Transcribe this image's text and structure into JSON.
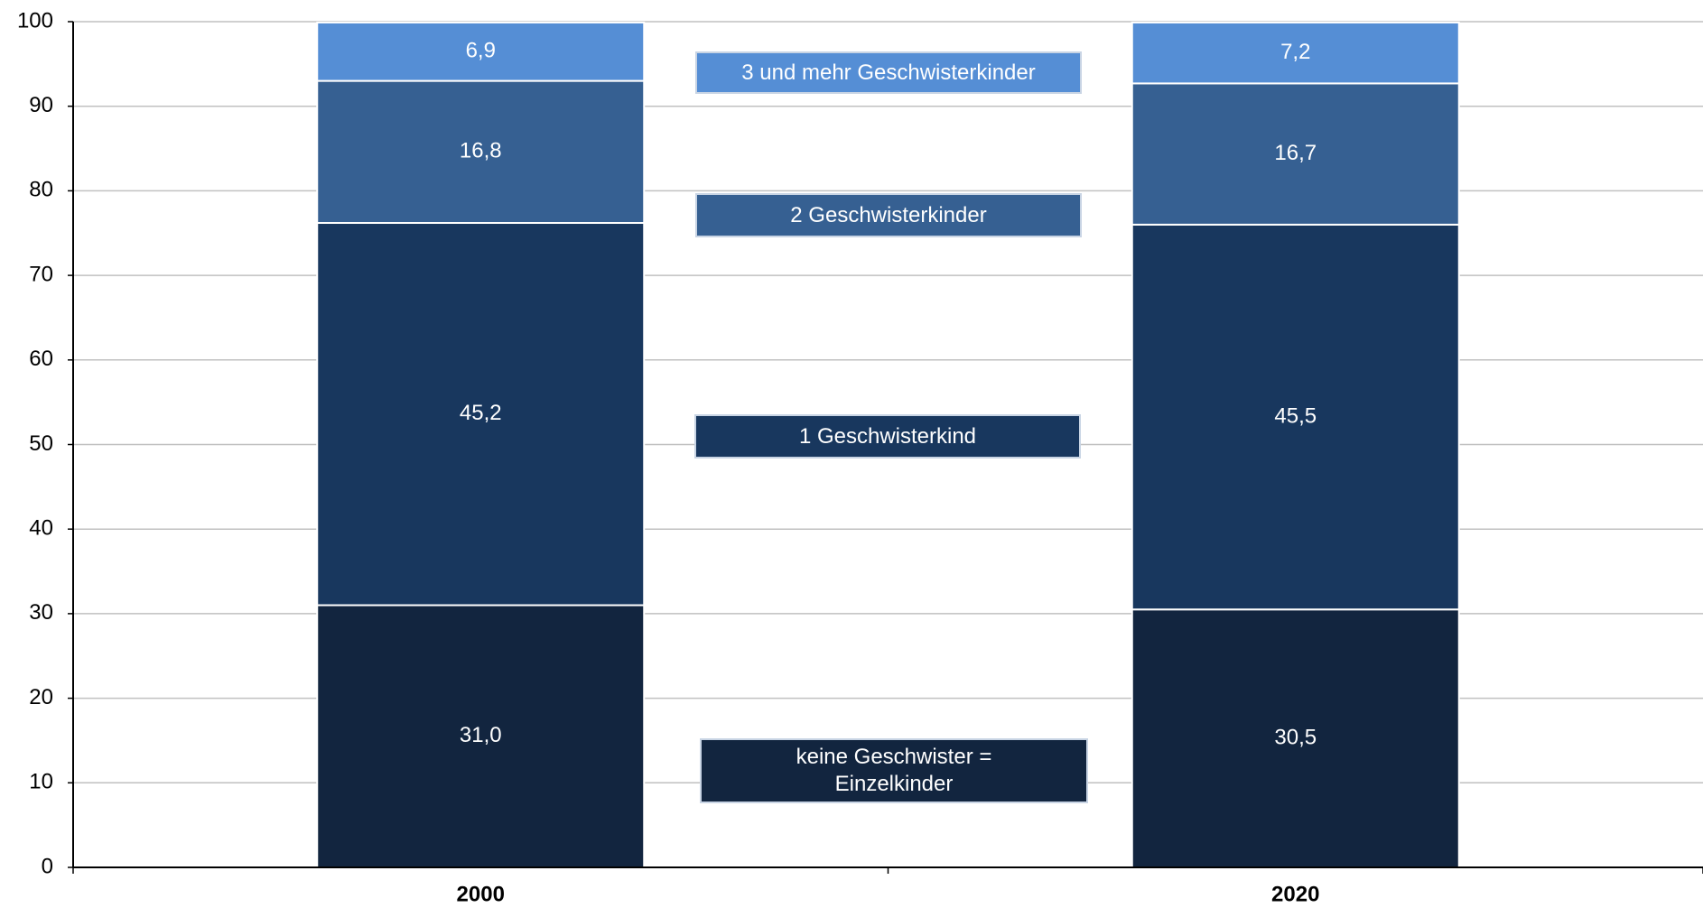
{
  "chart_data": {
    "type": "stacked_bar",
    "categories": [
      "2000",
      "2020"
    ],
    "series": [
      {
        "name": "keine Geschwister = Einzelkinder",
        "color": "#12253f",
        "values": [
          31.0,
          30.5
        ],
        "value_labels": [
          "31,0",
          "30,5"
        ]
      },
      {
        "name": "1 Geschwisterkind",
        "color": "#18375e",
        "values": [
          45.2,
          45.5
        ],
        "value_labels": [
          "45,2",
          "45,5"
        ]
      },
      {
        "name": "2 Geschwisterkinder",
        "color": "#366092",
        "values": [
          16.8,
          16.7
        ],
        "value_labels": [
          "16,8",
          "16,7"
        ]
      },
      {
        "name": "3 und mehr Geschwisterkinder",
        "color": "#558ed5",
        "values": [
          6.9,
          7.2
        ],
        "value_labels": [
          "6,9",
          "7,2"
        ]
      }
    ],
    "ylim": [
      0,
      100
    ],
    "yticks": [
      0,
      10,
      20,
      30,
      40,
      50,
      60,
      70,
      80,
      90,
      100
    ],
    "grid": true
  }
}
